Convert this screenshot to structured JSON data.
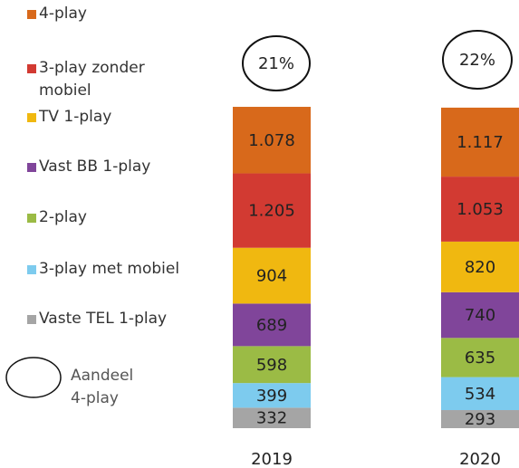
{
  "chart_data": {
    "type": "stacked_bar",
    "categories": [
      "2019",
      "2020"
    ],
    "series": [
      {
        "name": "Vaste TEL 1-play",
        "color": "#a5a5a5",
        "values": [
          332,
          293
        ]
      },
      {
        "name": "3-play met mobiel",
        "color": "#7dcbee",
        "values": [
          399,
          534
        ]
      },
      {
        "name": "2-play",
        "color": "#9bbb45",
        "values": [
          598,
          635
        ]
      },
      {
        "name": "Vast BB 1-play",
        "color": "#80459a",
        "values": [
          689,
          740
        ]
      },
      {
        "name": "TV 1-play",
        "color": "#f0b810",
        "values": [
          904,
          820
        ]
      },
      {
        "name": "3-play zonder mobiel",
        "color": "#d23a32",
        "values": [
          1205,
          1053
        ],
        "value_labels": [
          "1.205",
          "1.053"
        ]
      },
      {
        "name": "4-play",
        "color": "#d8691b",
        "values": [
          1078,
          1117
        ],
        "value_labels": [
          "1.078",
          "1.117"
        ]
      }
    ],
    "share_legend": "Aandeel 4-play",
    "shares": [
      21,
      22
    ],
    "share_labels": [
      "21%",
      "22%"
    ]
  }
}
